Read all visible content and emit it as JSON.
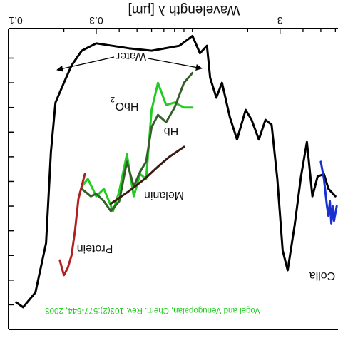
{
  "chart_data": {
    "type": "line",
    "title": "",
    "xlabel": "Wavelength λ [µm]",
    "ylabel": "",
    "xscale": "log",
    "xlim": [
      0.1,
      6.2
    ],
    "ylim": [
      0,
      12.2
    ],
    "grid": false,
    "x_ticks": [
      {
        "value": 0.1,
        "label": "0.1"
      },
      {
        "value": 0.3,
        "label": "0.3"
      },
      {
        "value": 3,
        "label": "3"
      }
    ],
    "series": [
      {
        "name": "Water",
        "color": "#000000",
        "points": [
          [
            0.11,
            1.1
          ],
          [
            0.12,
            0.9
          ],
          [
            0.14,
            1.5
          ],
          [
            0.16,
            3.5
          ],
          [
            0.17,
            7.2
          ],
          [
            0.18,
            9.2
          ],
          [
            0.2,
            10.0
          ],
          [
            0.22,
            10.7
          ],
          [
            0.25,
            11.3
          ],
          [
            0.3,
            11.6
          ],
          [
            0.45,
            11.4
          ],
          [
            0.6,
            11.3
          ],
          [
            0.85,
            11.5
          ],
          [
            1.0,
            11.9
          ],
          [
            1.1,
            11.2
          ],
          [
            1.2,
            11.5
          ],
          [
            1.25,
            10.2
          ],
          [
            1.35,
            9.4
          ],
          [
            1.45,
            10.0
          ],
          [
            1.6,
            8.6
          ],
          [
            1.75,
            7.7
          ],
          [
            1.95,
            8.9
          ],
          [
            2.1,
            8.5
          ],
          [
            2.3,
            7.7
          ],
          [
            2.5,
            8.5
          ],
          [
            2.7,
            8.3
          ],
          [
            2.9,
            6.1
          ],
          [
            3.1,
            3.2
          ],
          [
            3.3,
            2.4
          ],
          [
            3.6,
            4.2
          ],
          [
            3.9,
            6.2
          ],
          [
            4.2,
            7.6
          ],
          [
            4.5,
            5.4
          ],
          [
            4.8,
            6.2
          ],
          [
            5.2,
            6.3
          ],
          [
            5.5,
            5.7
          ],
          [
            6.0,
            5.4
          ]
        ]
      },
      {
        "name": "HbO2",
        "color": "#22cc22",
        "points": [
          [
            0.25,
            5.8
          ],
          [
            0.27,
            6.1
          ],
          [
            0.3,
            5.4
          ],
          [
            0.33,
            5.7
          ],
          [
            0.37,
            4.8
          ],
          [
            0.4,
            5.6
          ],
          [
            0.44,
            7.1
          ],
          [
            0.48,
            5.4
          ],
          [
            0.52,
            6.3
          ],
          [
            0.56,
            6.1
          ],
          [
            0.6,
            8.9
          ],
          [
            0.65,
            10.0
          ],
          [
            0.72,
            9.1
          ],
          [
            0.8,
            9.2
          ],
          [
            0.9,
            9.0
          ],
          [
            1.0,
            9.0
          ]
        ]
      },
      {
        "name": "Hb",
        "color": "#355f2a",
        "points": [
          [
            0.25,
            5.7
          ],
          [
            0.28,
            5.4
          ],
          [
            0.3,
            5.5
          ],
          [
            0.33,
            5.2
          ],
          [
            0.36,
            4.8
          ],
          [
            0.4,
            5.2
          ],
          [
            0.44,
            6.8
          ],
          [
            0.48,
            5.8
          ],
          [
            0.52,
            6.4
          ],
          [
            0.56,
            6.8
          ],
          [
            0.6,
            8.2
          ],
          [
            0.65,
            8.7
          ],
          [
            0.72,
            8.4
          ],
          [
            0.8,
            9.0
          ],
          [
            0.9,
            10.0
          ],
          [
            1.0,
            10.4
          ]
        ]
      },
      {
        "name": "Melanin",
        "color": "#3a1a12",
        "points": [
          [
            0.36,
            5.1
          ],
          [
            0.45,
            5.6
          ],
          [
            0.55,
            6.1
          ],
          [
            0.65,
            6.6
          ],
          [
            0.75,
            7.0
          ],
          [
            0.9,
            7.4
          ]
        ]
      },
      {
        "name": "Protein",
        "color": "#b02020",
        "points": [
          [
            0.19,
            2.8
          ],
          [
            0.2,
            2.2
          ],
          [
            0.21,
            2.5
          ],
          [
            0.22,
            3.0
          ],
          [
            0.23,
            4.0
          ],
          [
            0.24,
            5.3
          ],
          [
            0.26,
            6.3
          ]
        ]
      },
      {
        "name": "Collagen",
        "color": "#1a2fd0",
        "points": [
          [
            5.0,
            6.8
          ],
          [
            5.2,
            6.1
          ],
          [
            5.4,
            5.0
          ],
          [
            5.5,
            4.6
          ],
          [
            5.6,
            5.2
          ],
          [
            5.7,
            4.3
          ],
          [
            5.8,
            5.0
          ],
          [
            5.9,
            4.4
          ],
          [
            6.1,
            5.0
          ]
        ]
      }
    ],
    "labels": {
      "water": "Water",
      "hbo2": "HbO",
      "hbo2_sub": "2",
      "hb": "Hb",
      "melanin": "Melanin",
      "protein": "Protein",
      "collagen": "Colla"
    },
    "citation": "Vogel and Venugopalan, Chem. Rev. 103(2):577-644, 2003",
    "citation_color": "#22cc22"
  }
}
